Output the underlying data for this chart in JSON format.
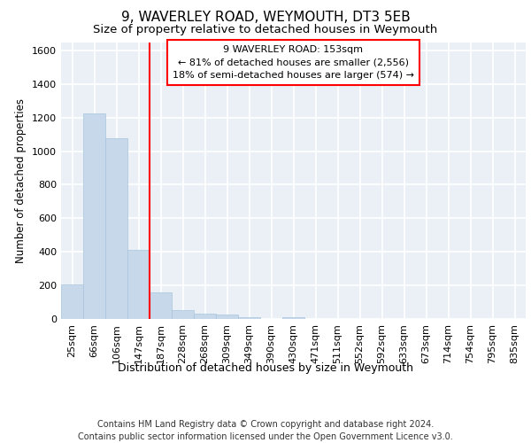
{
  "title1": "9, WAVERLEY ROAD, WEYMOUTH, DT3 5EB",
  "title2": "Size of property relative to detached houses in Weymouth",
  "xlabel": "Distribution of detached houses by size in Weymouth",
  "ylabel": "Number of detached properties",
  "footnote": "Contains HM Land Registry data © Crown copyright and database right 2024.\nContains public sector information licensed under the Open Government Licence v3.0.",
  "categories": [
    "25sqm",
    "66sqm",
    "106sqm",
    "147sqm",
    "187sqm",
    "228sqm",
    "268sqm",
    "309sqm",
    "349sqm",
    "390sqm",
    "430sqm",
    "471sqm",
    "511sqm",
    "552sqm",
    "592sqm",
    "633sqm",
    "673sqm",
    "714sqm",
    "754sqm",
    "795sqm",
    "835sqm"
  ],
  "values": [
    205,
    1225,
    1075,
    410,
    160,
    55,
    30,
    25,
    10,
    0,
    10,
    0,
    0,
    0,
    0,
    0,
    0,
    0,
    0,
    0,
    0
  ],
  "bar_color": "#c8d8eb",
  "bar_edge_color": "#aac4dc",
  "red_line_index": 3.5,
  "annotation_line1": "9 WAVERLEY ROAD: 153sqm",
  "annotation_line2": "← 81% of detached houses are smaller (2,556)",
  "annotation_line3": "18% of semi-detached houses are larger (574) →",
  "ylim": [
    0,
    1650
  ],
  "yticks": [
    0,
    200,
    400,
    600,
    800,
    1000,
    1200,
    1400,
    1600
  ],
  "background_color": "#eaf0f6",
  "grid_color": "#ffffff",
  "title1_fontsize": 11,
  "title2_fontsize": 9.5,
  "xlabel_fontsize": 9,
  "ylabel_fontsize": 8.5,
  "tick_fontsize": 8,
  "footnote_fontsize": 7,
  "annot_fontsize": 8
}
